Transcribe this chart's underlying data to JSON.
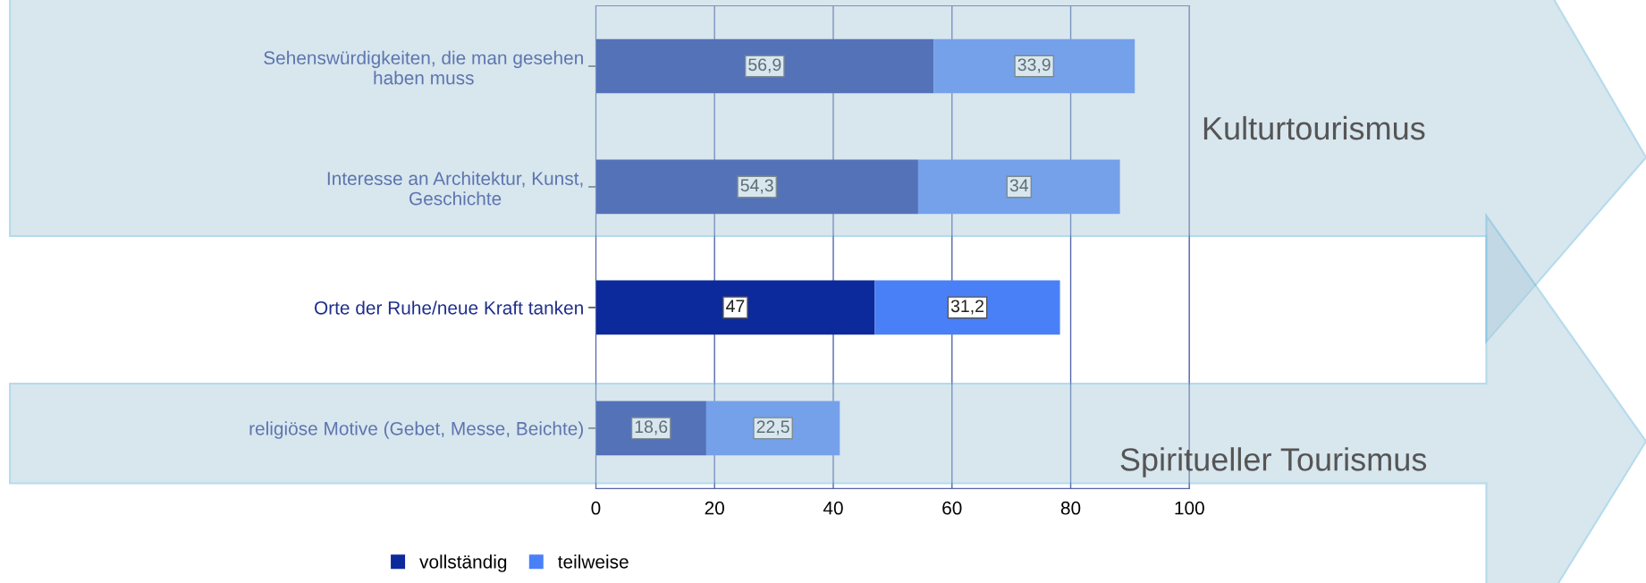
{
  "chart_data": {
    "type": "bar",
    "orientation": "horizontal",
    "stacked": true,
    "categories": [
      "Sehenswürdigkeiten, die man gesehen\nhaben muss",
      "Interesse an Architektur, Kunst,\nGeschichte",
      "Orte der Ruhe/neue Kraft tanken",
      "religiöse Motive (Gebet, Messe, Beichte)"
    ],
    "series": [
      {
        "name": "vollständig",
        "color": "#0d2a9c",
        "values": [
          56.9,
          54.3,
          47,
          18.6
        ],
        "value_labels": [
          "56,9",
          "54,3",
          "47",
          "18,6"
        ]
      },
      {
        "name": "teilweise",
        "color": "#4a80f7",
        "values": [
          33.9,
          34,
          31.2,
          22.5
        ],
        "value_labels": [
          "33,9",
          "34",
          "31,2",
          "22,5"
        ]
      }
    ],
    "xlim": [
      0,
      100
    ],
    "xticks": [
      0,
      20,
      40,
      60,
      80,
      100
    ],
    "grid": "x",
    "legend": "bottom",
    "annotations": [
      "Kulturtourismus",
      "Spiritueller Tourismus"
    ]
  }
}
